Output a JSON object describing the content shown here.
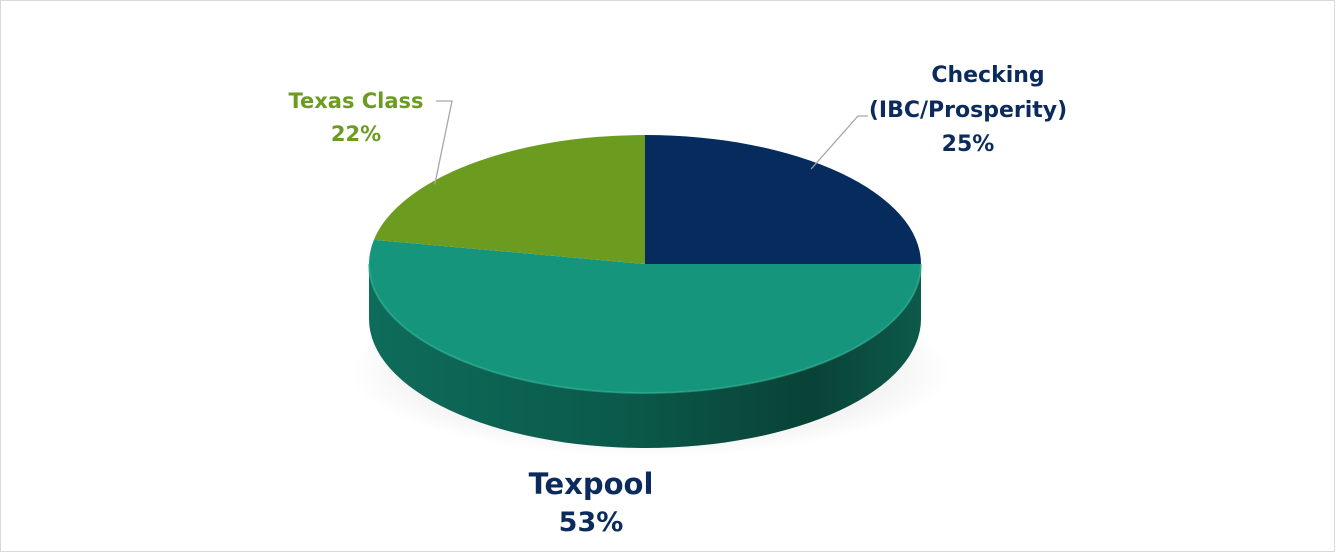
{
  "chart_data": {
    "type": "pie",
    "title": "",
    "three_d": true,
    "slices": [
      {
        "label_lines": [
          "Checking",
          "(IBC/Prosperity)"
        ],
        "percent_label": "25%",
        "value": 25,
        "color": "#062c5e"
      },
      {
        "label_lines": [
          "Texpool"
        ],
        "percent_label": "53%",
        "value": 53,
        "color": "#15957c"
      },
      {
        "label_lines": [
          "Texas Class"
        ],
        "percent_label": "22%",
        "value": 22,
        "color": "#6b9c1f"
      }
    ],
    "label_colors": {
      "checking": "#0b2b5c",
      "texpool": "#0b2b5c",
      "texas_class": "#6b9c1f"
    },
    "leader_line_color": "#a6a6a6"
  }
}
